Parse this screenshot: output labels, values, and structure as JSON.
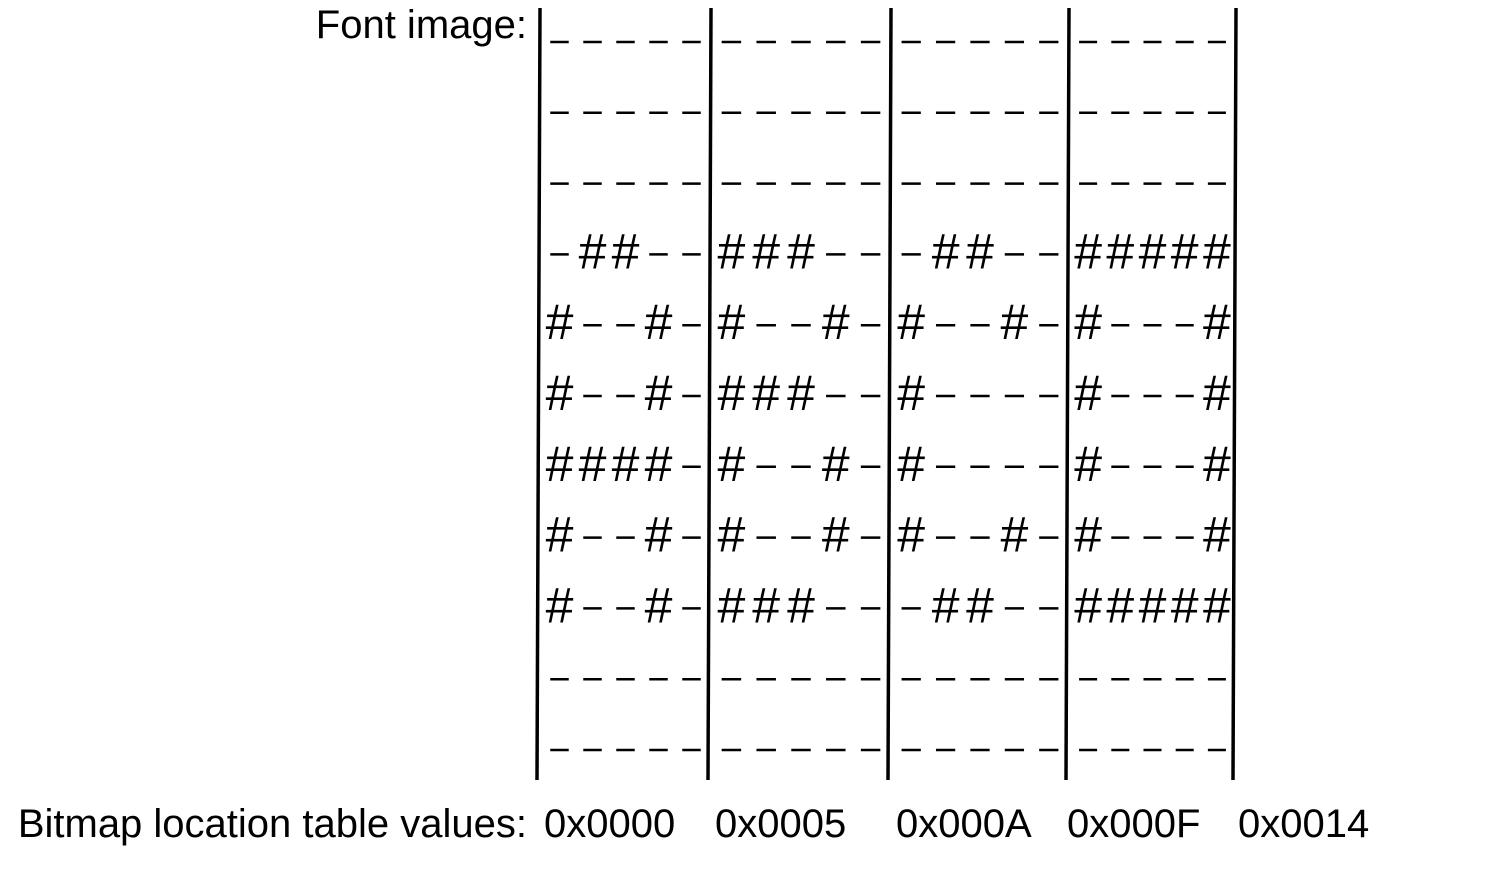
{
  "font_image_label": "Font image:",
  "bitmap_table_label": "Bitmap location table values:",
  "glyphs": [
    {
      "offset": "0x0000",
      "rows": [
        "-----",
        "-----",
        "-----",
        "-##--",
        "#--#-",
        "#--#-",
        "####-",
        "#--#-",
        "#--#-",
        "-----",
        "-----"
      ]
    },
    {
      "offset": "0x0005",
      "rows": [
        "-----",
        "-----",
        "-----",
        "###--",
        "#--#-",
        "###--",
        "#--#-",
        "#--#-",
        "###--",
        "-----",
        "-----"
      ]
    },
    {
      "offset": "0x000A",
      "rows": [
        "-----",
        "-----",
        "-----",
        "-##--",
        "#--#-",
        "#----",
        "#----",
        "#--#-",
        "-##--",
        "-----",
        "-----"
      ]
    },
    {
      "offset": "0x000F",
      "rows": [
        "-----",
        "-----",
        "-----",
        "#####",
        "#---#",
        "#---#",
        "#---#",
        "#---#",
        "#####",
        "-----",
        "-----"
      ]
    }
  ],
  "end_offset": "0x0014"
}
